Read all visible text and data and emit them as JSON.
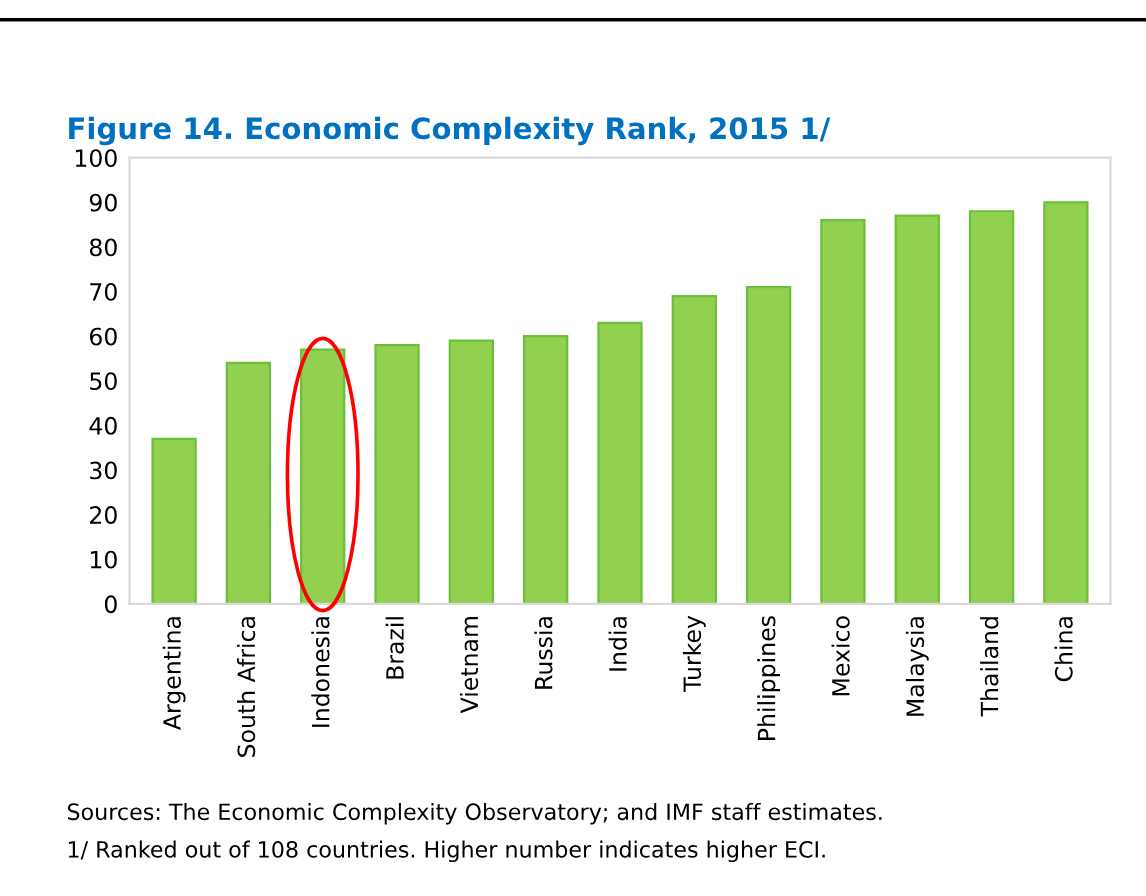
{
  "chart_data": {
    "type": "bar",
    "title": "Figure 14. Economic Complexity Rank, 2015 1/",
    "categories": [
      "Argentina",
      "South Africa",
      "Indonesia",
      "Brazil",
      "Vietnam",
      "Russia",
      "India",
      "Turkey",
      "Philippines",
      "Mexico",
      "Malaysia",
      "Thailand",
      "China"
    ],
    "values": [
      37,
      54,
      57,
      58,
      59,
      60,
      63,
      69,
      71,
      86,
      87,
      88,
      90
    ],
    "color": "#92d050",
    "ylim": [
      0,
      100
    ],
    "yticks": [
      0,
      10,
      20,
      30,
      40,
      50,
      60,
      70,
      80,
      90,
      100
    ],
    "grid": false,
    "annotations": [
      "Sources: The Economic Complexity Observatory; and IMF staff estimates.",
      "1/ Ranked out of 108 countries. Higher number indicates higher ECI."
    ]
  }
}
